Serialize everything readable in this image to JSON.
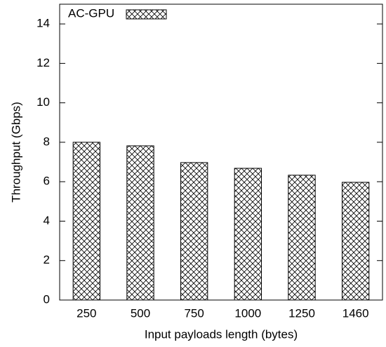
{
  "chart_data": {
    "type": "bar",
    "x_label": "Input payloads length (bytes)",
    "y_label": "Throughput (Gbps)",
    "categories": [
      "250",
      "500",
      "750",
      "1000",
      "1250",
      "1460"
    ],
    "series": [
      {
        "name": "AC-GPU",
        "color": "#000000",
        "values": [
          8.0,
          7.82,
          6.97,
          6.68,
          6.33,
          5.97
        ]
      }
    ],
    "ylim": [
      0,
      15
    ],
    "yticks": [
      0,
      2,
      4,
      6,
      8,
      10,
      12,
      14
    ],
    "fill_pattern": "crosshatch",
    "legend": "top-left"
  }
}
